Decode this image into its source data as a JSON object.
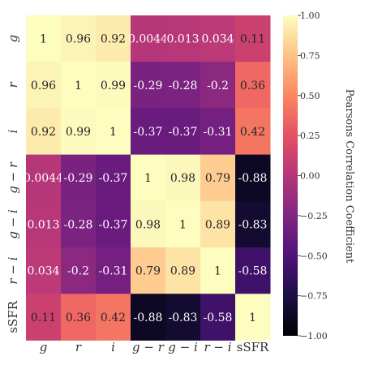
{
  "chart_data": {
    "type": "heatmap",
    "row_labels": [
      "g",
      "r",
      "i",
      "g − r",
      "g − i",
      "r − i",
      "sSFR"
    ],
    "col_labels": [
      "g",
      "r",
      "i",
      "g − r",
      "g − i",
      "r − i",
      "sSFR"
    ],
    "values": [
      [
        1,
        0.96,
        0.92,
        0.0044,
        0.013,
        0.034,
        0.11
      ],
      [
        0.96,
        1,
        0.99,
        -0.29,
        -0.28,
        -0.2,
        0.36
      ],
      [
        0.92,
        0.99,
        1,
        -0.37,
        -0.37,
        -0.31,
        0.42
      ],
      [
        0.0044,
        -0.29,
        -0.37,
        1,
        0.98,
        0.79,
        -0.88
      ],
      [
        0.013,
        -0.28,
        -0.37,
        0.98,
        1,
        0.89,
        -0.83
      ],
      [
        0.034,
        -0.2,
        -0.31,
        0.79,
        0.89,
        1,
        -0.58
      ],
      [
        0.11,
        0.36,
        0.42,
        -0.88,
        -0.83,
        -0.58,
        1
      ]
    ],
    "value_labels": [
      [
        "1",
        "0.96",
        "0.92",
        "0.0044",
        "0.013",
        "0.034",
        "0.11"
      ],
      [
        "0.96",
        "1",
        "0.99",
        "-0.29",
        "-0.28",
        "-0.2",
        "0.36"
      ],
      [
        "0.92",
        "0.99",
        "1",
        "-0.37",
        "-0.37",
        "-0.31",
        "0.42"
      ],
      [
        "0.0044",
        "-0.29",
        "-0.37",
        "1",
        "0.98",
        "0.79",
        "-0.88"
      ],
      [
        "0.013",
        "-0.28",
        "-0.37",
        "0.98",
        "1",
        "0.89",
        "-0.83"
      ],
      [
        "0.034",
        "-0.2",
        "-0.31",
        "0.79",
        "0.89",
        "1",
        "-0.58"
      ],
      [
        "0.11",
        "0.36",
        "0.42",
        "-0.88",
        "-0.83",
        "-0.58",
        "1"
      ]
    ],
    "colormap": "magma",
    "vmin": -1.0,
    "vmax": 1.0,
    "colorbar": {
      "label": "Pearsons Correlation Coefficient",
      "ticks": [
        "1.00",
        "0.75",
        "0.50",
        "0.25",
        "0.00",
        "−0.25",
        "−0.50",
        "−0.75",
        "−1.00"
      ],
      "tick_values": [
        1.0,
        0.75,
        0.5,
        0.25,
        0.0,
        -0.25,
        -0.5,
        -0.75,
        -1.0
      ]
    },
    "title": "",
    "xlabel": "",
    "ylabel": ""
  }
}
